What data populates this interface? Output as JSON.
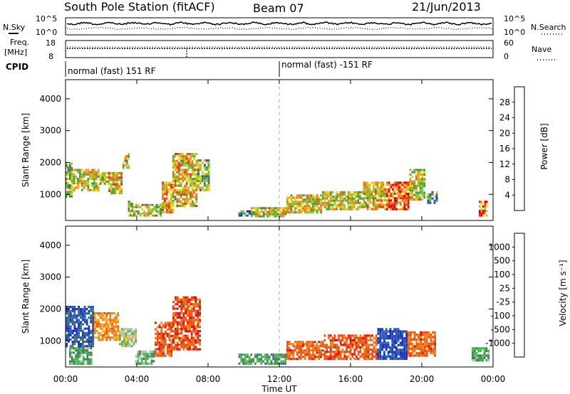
{
  "header": {
    "station": "South Pole Station (fitACF)",
    "beam": "Beam 07",
    "date": "21/Jun/2013"
  },
  "noise_panel": {
    "left_label": "N.Sky",
    "right_label": "N.Search",
    "left_ticks": [
      "10^5",
      "10^0"
    ],
    "right_ticks": [
      "10^5",
      "10^0"
    ]
  },
  "freq_panel": {
    "left_label_1": "Freq.",
    "left_label_2": "[MHz]",
    "right_label": "Nave",
    "left_ticks": [
      "18",
      "8"
    ],
    "right_ticks": [
      "60",
      "0"
    ]
  },
  "cpid": {
    "label": "CPID",
    "mode1": "normal (fast) 151 RF",
    "mode2": "normal (fast) -151 RF",
    "switch_hour": 12.0
  },
  "x_axis": {
    "label": "Time UT",
    "ticks": [
      "00:00",
      "04:00",
      "08:00",
      "12:00",
      "16:00",
      "20:00",
      "00:00"
    ],
    "range_hours": [
      0,
      24
    ]
  },
  "chart_data": [
    {
      "type": "heatmap",
      "name": "power",
      "ylabel": "Slant Range [km]",
      "yticks": [
        "1000",
        "2000",
        "3000",
        "4000"
      ],
      "ylim": [
        180,
        4600
      ],
      "colorbar_label": "Power [dB]",
      "colorbar_ticks": [
        "4",
        "8",
        "12",
        "16",
        "20",
        "24",
        "28"
      ],
      "colorbar_colors": [
        "#0a1cf0",
        "#2a48c8",
        "#3f7f5c",
        "#3aa048",
        "#7cc82a",
        "#e8d21a",
        "#f4a010",
        "#f07010",
        "#e83010",
        "#d80000"
      ],
      "regions": [
        {
          "t0": 0.0,
          "t1": 0.4,
          "r0": 900,
          "r1": 2000,
          "level": 0.35
        },
        {
          "t0": 0.3,
          "t1": 1.9,
          "r0": 1100,
          "r1": 1800,
          "level": 0.55
        },
        {
          "t0": 1.9,
          "t1": 2.5,
          "r0": 1300,
          "r1": 1700,
          "level": 0.45
        },
        {
          "t0": 2.4,
          "t1": 3.2,
          "r0": 1000,
          "r1": 1700,
          "level": 0.6
        },
        {
          "t0": 3.2,
          "t1": 3.6,
          "r0": 1800,
          "r1": 2300,
          "level": 0.5
        },
        {
          "t0": 3.5,
          "t1": 3.9,
          "r0": 300,
          "r1": 800,
          "level": 0.45
        },
        {
          "t0": 3.8,
          "t1": 5.4,
          "r0": 300,
          "r1": 700,
          "level": 0.5
        },
        {
          "t0": 5.4,
          "t1": 6.1,
          "r0": 400,
          "r1": 1400,
          "level": 0.65
        },
        {
          "t0": 6.0,
          "t1": 7.4,
          "r0": 600,
          "r1": 2300,
          "level": 0.6
        },
        {
          "t0": 7.4,
          "t1": 8.1,
          "r0": 1100,
          "r1": 2100,
          "level": 0.4
        },
        {
          "t0": 9.7,
          "t1": 10.5,
          "r0": 300,
          "r1": 500,
          "level": 0.3
        },
        {
          "t0": 10.4,
          "t1": 12.4,
          "r0": 280,
          "r1": 600,
          "level": 0.5
        },
        {
          "t0": 12.4,
          "t1": 14.4,
          "r0": 400,
          "r1": 1000,
          "level": 0.55
        },
        {
          "t0": 14.4,
          "t1": 16.7,
          "r0": 500,
          "r1": 1100,
          "level": 0.55
        },
        {
          "t0": 16.7,
          "t1": 18.0,
          "r0": 500,
          "r1": 1400,
          "level": 0.6
        },
        {
          "t0": 18.0,
          "t1": 19.3,
          "r0": 500,
          "r1": 1400,
          "level": 0.8
        },
        {
          "t0": 19.3,
          "t1": 20.2,
          "r0": 800,
          "r1": 1800,
          "level": 0.55
        },
        {
          "t0": 20.3,
          "t1": 20.9,
          "r0": 700,
          "r1": 1100,
          "level": 0.3
        },
        {
          "t0": 23.2,
          "t1": 23.7,
          "r0": 300,
          "r1": 800,
          "level": 0.75
        }
      ]
    },
    {
      "type": "heatmap",
      "name": "velocity",
      "ylabel": "Slant Range [km]",
      "yticks": [
        "1000",
        "2000",
        "3000",
        "4000"
      ],
      "ylim": [
        180,
        4600
      ],
      "colorbar_label": "Velocity [m s⁻¹]",
      "colorbar_ticks": [
        "1000",
        "500",
        "100",
        "25",
        "-25",
        "-100",
        "-500",
        "-1000"
      ],
      "colorbar_colors": [
        "#1a2fc0",
        "#2a5fb0",
        "#3f7f5c",
        "#4ab848",
        "#c0c0c0",
        "#f0b020",
        "#f08010",
        "#f05010",
        "#e01010"
      ],
      "regions": [
        {
          "t0": 0.0,
          "t1": 1.6,
          "r0": 800,
          "r1": 2100,
          "v": 0.7
        },
        {
          "t0": 0.2,
          "t1": 1.5,
          "r0": 250,
          "r1": 800,
          "v": 0.3
        },
        {
          "t0": 1.6,
          "t1": 3.0,
          "r0": 1000,
          "r1": 1900,
          "v": -0.4
        },
        {
          "t0": 3.0,
          "t1": 4.0,
          "r0": 800,
          "r1": 1400,
          "v": 0.05
        },
        {
          "t0": 3.9,
          "t1": 5.0,
          "r0": 250,
          "r1": 700,
          "v": 0.2
        },
        {
          "t0": 5.0,
          "t1": 6.0,
          "r0": 500,
          "r1": 1600,
          "v": -0.65
        },
        {
          "t0": 6.0,
          "t1": 7.6,
          "r0": 700,
          "r1": 2400,
          "v": -0.7
        },
        {
          "t0": 9.7,
          "t1": 12.4,
          "r0": 250,
          "r1": 600,
          "v": 0.35
        },
        {
          "t0": 12.4,
          "t1": 14.5,
          "r0": 400,
          "r1": 1000,
          "v": -0.6
        },
        {
          "t0": 14.5,
          "t1": 17.5,
          "r0": 400,
          "r1": 1200,
          "v": -0.65
        },
        {
          "t0": 17.5,
          "t1": 19.2,
          "r0": 400,
          "r1": 1400,
          "v": 0.8
        },
        {
          "t0": 19.2,
          "t1": 20.8,
          "r0": 500,
          "r1": 1300,
          "v": -0.6
        },
        {
          "t0": 22.8,
          "t1": 23.8,
          "r0": 350,
          "r1": 800,
          "v": 0.3
        }
      ]
    }
  ]
}
